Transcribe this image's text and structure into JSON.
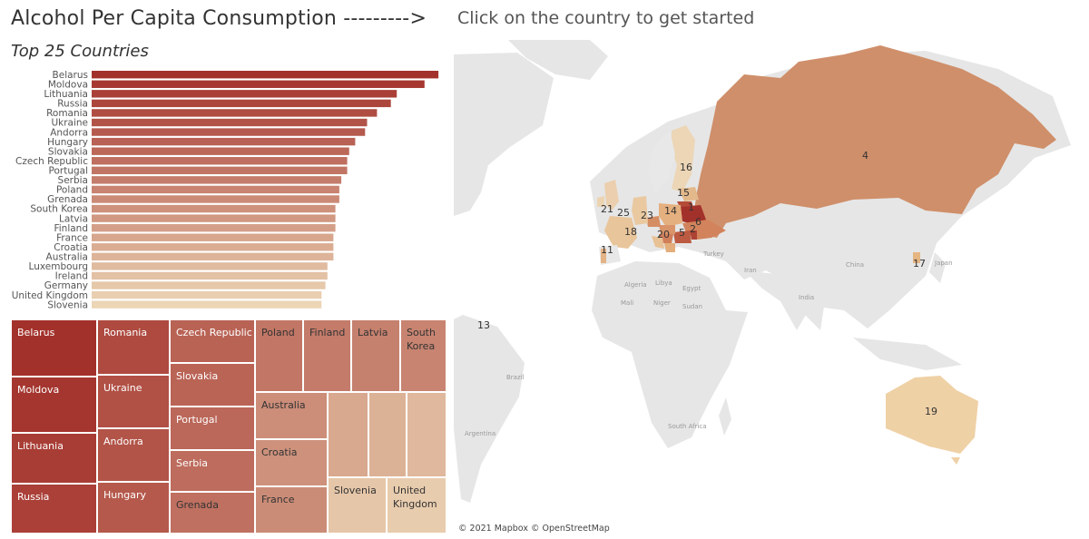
{
  "header": {
    "title": "Alcohol Per Capita Consumption --------->",
    "subtitle": "Top 25 Countries"
  },
  "map": {
    "instruction": "Click on the country to get started",
    "attribution": "© 2021 Mapbox © OpenStreetMap",
    "ocean_color": "#ffffff",
    "land_color": "#e6e6e6",
    "place_labels": [
      "Turkey",
      "Iran",
      "Algeria",
      "Egypt",
      "Libya",
      "Mali",
      "Niger",
      "Sudan",
      "India",
      "China",
      "Japan",
      "Brazil",
      "Argentina",
      "South Africa"
    ],
    "rank_labels": [
      {
        "country": "Belarus",
        "rank": "1"
      },
      {
        "country": "Moldova",
        "rank": "2"
      },
      {
        "country": "Russia",
        "rank": "4"
      },
      {
        "country": "Romania",
        "rank": "5"
      },
      {
        "country": "Ukraine",
        "rank": "6"
      },
      {
        "country": "Portugal",
        "rank": "11"
      },
      {
        "country": "Grenada",
        "rank": "13"
      },
      {
        "country": "Poland",
        "rank": "14"
      },
      {
        "country": "Latvia",
        "rank": "15"
      },
      {
        "country": "Finland",
        "rank": "16"
      },
      {
        "country": "South Korea",
        "rank": "17"
      },
      {
        "country": "France",
        "rank": "18"
      },
      {
        "country": "Australia",
        "rank": "19"
      },
      {
        "country": "Croatia",
        "rank": "20"
      },
      {
        "country": "Ireland",
        "rank": "21"
      },
      {
        "country": "Germany",
        "rank": "23"
      },
      {
        "country": "United Kingdom",
        "rank": "25"
      }
    ]
  },
  "chart_data": [
    {
      "type": "bar",
      "orientation": "horizontal",
      "title": "Top 25 Countries",
      "categories": [
        "Belarus",
        "Moldova",
        "Lithuania",
        "Russia",
        "Romania",
        "Ukraine",
        "Andorra",
        "Hungary",
        "Slovakia",
        "Czech Republic",
        "Portugal",
        "Serbia",
        "Poland",
        "Grenada",
        "South Korea",
        "Latvia",
        "Finland",
        "France",
        "Croatia",
        "Australia",
        "Luxembourg",
        "Ireland",
        "Germany",
        "United Kingdom",
        "Slovenia"
      ],
      "values": [
        17.5,
        16.8,
        15.4,
        15.1,
        14.4,
        13.9,
        13.8,
        13.3,
        13.0,
        12.9,
        12.9,
        12.6,
        12.5,
        12.5,
        12.3,
        12.3,
        12.3,
        12.2,
        12.2,
        12.2,
        11.9,
        11.9,
        11.8,
        11.6,
        11.6
      ],
      "xlim": [
        0,
        18
      ],
      "color_scale": [
        "#a3312b",
        "#ecd6b6"
      ],
      "grid": false
    },
    {
      "type": "treemap",
      "labels": [
        "Belarus",
        "Moldova",
        "Lithuania",
        "Russia",
        "Romania",
        "Ukraine",
        "Andorra",
        "Hungary",
        "Czech Republic",
        "Slovakia",
        "Portugal",
        "Serbia",
        "Grenada",
        "Poland",
        "Finland",
        "Latvia",
        "South Korea",
        "Australia",
        "Croatia",
        "France",
        "Slovenia",
        "United Kingdom"
      ],
      "color_scale": [
        "#a3312b",
        "#ecd6b6"
      ]
    }
  ]
}
